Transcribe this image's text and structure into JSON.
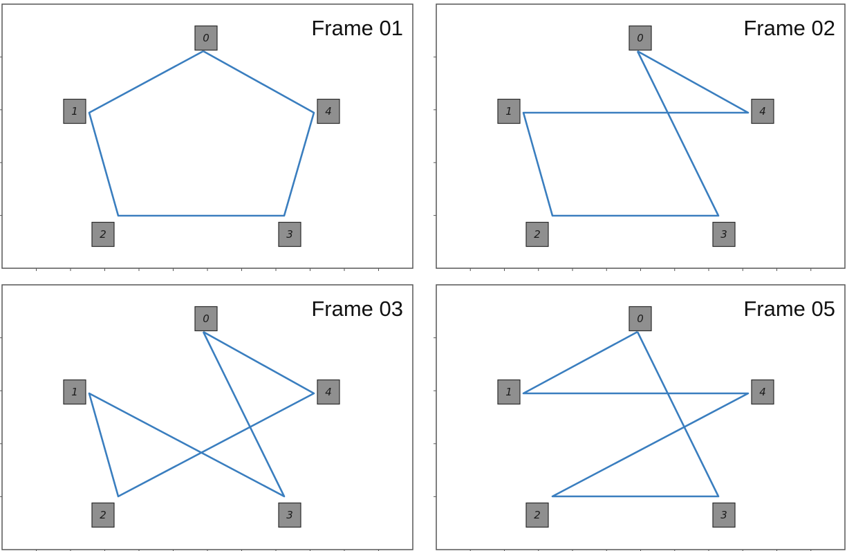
{
  "colors": {
    "edge": "#3a7ebf",
    "node_fill": "#8f8f8f",
    "node_stroke": "#2b2b2b",
    "frame_border": "#555555",
    "background": "#ffffff"
  },
  "frames": [
    {
      "title": "Frame 01",
      "order": [
        "0",
        "4",
        "3",
        "2",
        "1",
        "0"
      ]
    },
    {
      "title": "Frame 02",
      "order": [
        "0",
        "4",
        "1",
        "2",
        "3",
        "0"
      ]
    },
    {
      "title": "Frame 03",
      "order": [
        "0",
        "4",
        "2",
        "1",
        "3",
        "0"
      ]
    },
    {
      "title": "Frame 05",
      "order": [
        "0",
        "1",
        "4",
        "2",
        "3",
        "0"
      ]
    }
  ],
  "nodes": [
    "0",
    "1",
    "2",
    "3",
    "4"
  ]
}
